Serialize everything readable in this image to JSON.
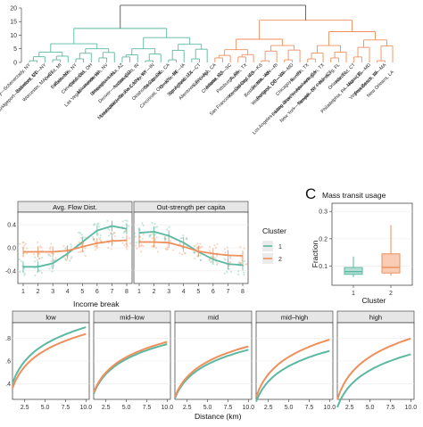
{
  "colors": {
    "cluster1": "#5bb8a1",
    "cluster2": "#ef8f5b",
    "link": "#555555"
  },
  "dendrogram": {
    "y_ticks": [
      "0",
      "5",
      "10",
      "15",
      "20"
    ],
    "cluster1_cities": [
      "Albany—Schenectady, NY",
      "Baltimore, MD",
      "Bridgeport—Stamford, CT—NY",
      "Worcester, MA—CT",
      "Detroit, MI",
      "Buffalo, NY",
      "Rochester, NY",
      "Cleveland, OH",
      "Columbus, OH",
      "Milwaukee, WI",
      "Las Vegas—Henderson, NV",
      "Birmingham, AL",
      "Phoenix—Mesa, AZ",
      "Denver—Aurora, CO",
      "Indianapolis, IN",
      "Minneapolis—St. Paul, MN—WI",
      "Louisville/Jefferson County, KY—IN",
      "Oklahoma City, OK",
      "Sacramento, CA",
      "Cincinnati, OH—KY—IN",
      "Omaha, NE—IA",
      "San Antonio, TX",
      "Springfield, MA—CT",
      "Allentown, PA—NJ"
    ],
    "cluster2_cities": [
      "San Diego, CA",
      "Atlanta, GA",
      "Charlotte, NC—SC",
      "Pittsburgh, PA",
      "Austin, TX",
      "San Francisco—Oakland, CA",
      "Kansas City, MO—KS",
      "Seattle, WA",
      "Boston, MA—NH—RI",
      "Portland, OR—WA",
      "Washington, DC—VA—MD",
      "Chicago, IL—IN",
      "Houston, TX",
      "Los Angeles—Long Beach—Anaheim, CA",
      "Dallas—Fort Worth—Arlington, TX",
      "New York—Newark, NY—NJ—CT",
      "Tampa—St. Petersburg, FL",
      "Orlando, FL",
      "Hartford, CT",
      "Miami, FL",
      "Philadelphia, PA—NJ—DE—MD",
      "Virginia Beach, VA",
      "Providence, RI—MA",
      "New Orleans, LA"
    ]
  },
  "chart_data": [
    {
      "type": "line",
      "panels": [
        "Avg. Flow Dist.",
        "Out-strength per capita"
      ],
      "xlabel": "Income break",
      "x": [
        1,
        2,
        3,
        4,
        5,
        6,
        7,
        8
      ],
      "y_ticks": [
        "0.4",
        "0.0",
        "-0.4"
      ],
      "ylim": [
        -0.62,
        0.62
      ],
      "legend_title": "Cluster",
      "legend_labels": [
        "1",
        "2"
      ],
      "series": [
        {
          "panel": "Avg. Flow Dist.",
          "name": "1",
          "values": [
            -0.33,
            -0.33,
            -0.27,
            -0.1,
            0.1,
            0.3,
            0.38,
            0.33
          ]
        },
        {
          "panel": "Avg. Flow Dist.",
          "name": "2",
          "values": [
            -0.07,
            -0.07,
            -0.07,
            -0.05,
            0.02,
            0.08,
            0.12,
            0.13
          ]
        },
        {
          "panel": "Out-strength per capita",
          "name": "1",
          "values": [
            0.26,
            0.28,
            0.21,
            0.09,
            -0.07,
            -0.2,
            -0.28,
            -0.3
          ]
        },
        {
          "panel": "Out-strength per capita",
          "name": "2",
          "values": [
            0.1,
            0.1,
            0.09,
            0.02,
            -0.06,
            -0.1,
            -0.13,
            -0.14
          ]
        }
      ]
    },
    {
      "type": "boxplot",
      "panel_letter": "C",
      "title": "Mass transit usage",
      "xlabel": "Cluster",
      "ylabel": "Fraction",
      "categories": [
        "1",
        "2"
      ],
      "y_ticks": [
        "0.3",
        "0.2",
        "0.1"
      ],
      "ylim": [
        0.03,
        0.33
      ],
      "boxes": [
        {
          "name": "1",
          "min": 0.06,
          "q1": 0.07,
          "median": 0.08,
          "q3": 0.095,
          "max": 0.135
        },
        {
          "name": "2",
          "min": 0.065,
          "q1": 0.075,
          "median": 0.095,
          "q3": 0.145,
          "max": 0.25
        }
      ]
    },
    {
      "type": "line",
      "panels": [
        "low",
        "mid–low",
        "mid",
        "mid–high",
        "high"
      ],
      "xlabel": "Distance (km)",
      "x_ticks": [
        "2.5",
        "5.0",
        "7.5",
        "10.0"
      ],
      "y_ticks": [
        ".8",
        ".6",
        ".4"
      ],
      "xlim": [
        1.0,
        10.4
      ],
      "ylim": [
        0.26,
        0.94
      ],
      "curves": [
        {
          "panel": "low",
          "cluster": "1",
          "y_start": 0.4,
          "y_end": 0.9
        },
        {
          "panel": "low",
          "cluster": "2",
          "y_start": 0.36,
          "y_end": 0.84
        },
        {
          "panel": "mid–low",
          "cluster": "1",
          "y_start": 0.31,
          "y_end": 0.75
        },
        {
          "panel": "mid–low",
          "cluster": "2",
          "y_start": 0.32,
          "y_end": 0.77
        },
        {
          "panel": "mid",
          "cluster": "1",
          "y_start": 0.27,
          "y_end": 0.7
        },
        {
          "panel": "mid",
          "cluster": "2",
          "y_start": 0.28,
          "y_end": 0.73
        },
        {
          "panel": "mid–high",
          "cluster": "1",
          "y_start": 0.24,
          "y_end": 0.69
        },
        {
          "panel": "mid–high",
          "cluster": "2",
          "y_start": 0.28,
          "y_end": 0.79
        },
        {
          "panel": "high",
          "cluster": "1",
          "y_start": 0.19,
          "y_end": 0.66
        },
        {
          "panel": "high",
          "cluster": "2",
          "y_start": 0.26,
          "y_end": 0.8
        }
      ]
    }
  ]
}
